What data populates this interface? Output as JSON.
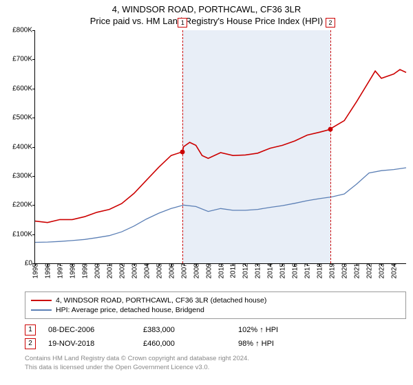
{
  "title_line1": "4, WINDSOR ROAD, PORTHCAWL, CF36 3LR",
  "title_line2": "Price paid vs. HM Land Registry's House Price Index (HPI)",
  "chart": {
    "type": "line",
    "x_years": [
      1995,
      1996,
      1997,
      1998,
      1999,
      2000,
      2001,
      2002,
      2003,
      2004,
      2005,
      2006,
      2007,
      2008,
      2009,
      2010,
      2011,
      2012,
      2013,
      2014,
      2015,
      2016,
      2017,
      2018,
      2019,
      2020,
      2021,
      2022,
      2023,
      2024
    ],
    "x_end_year": 2025,
    "ylim": [
      0,
      800000
    ],
    "ytick_step": 100000,
    "y_prefix": "£",
    "y_suffix": "K",
    "background": "#ffffff",
    "band": {
      "from_year": 2006.93,
      "to_year": 2018.88,
      "fill": "#e8eef7"
    },
    "vlines": [
      {
        "year": 2006.93,
        "color": "#cc0000",
        "dash": "2,2",
        "marker": "1"
      },
      {
        "year": 2018.88,
        "color": "#cc0000",
        "dash": "2,2",
        "marker": "2"
      }
    ],
    "series": [
      {
        "name": "4, WINDSOR ROAD, PORTHCAWL, CF36 3LR (detached house)",
        "color": "#cc0000",
        "width": 1.6,
        "points": [
          [
            1995,
            145000
          ],
          [
            1996,
            140000
          ],
          [
            1997,
            150000
          ],
          [
            1998,
            150000
          ],
          [
            1999,
            160000
          ],
          [
            2000,
            175000
          ],
          [
            2001,
            185000
          ],
          [
            2002,
            205000
          ],
          [
            2003,
            240000
          ],
          [
            2004,
            285000
          ],
          [
            2005,
            330000
          ],
          [
            2006,
            370000
          ],
          [
            2006.93,
            383000
          ],
          [
            2007,
            400000
          ],
          [
            2007.5,
            415000
          ],
          [
            2008,
            405000
          ],
          [
            2008.5,
            370000
          ],
          [
            2009,
            360000
          ],
          [
            2010,
            380000
          ],
          [
            2011,
            370000
          ],
          [
            2012,
            372000
          ],
          [
            2013,
            378000
          ],
          [
            2014,
            395000
          ],
          [
            2015,
            405000
          ],
          [
            2016,
            420000
          ],
          [
            2017,
            440000
          ],
          [
            2018,
            450000
          ],
          [
            2018.88,
            460000
          ],
          [
            2019,
            465000
          ],
          [
            2020,
            490000
          ],
          [
            2021,
            555000
          ],
          [
            2022,
            625000
          ],
          [
            2022.5,
            660000
          ],
          [
            2023,
            635000
          ],
          [
            2024,
            650000
          ],
          [
            2024.5,
            665000
          ],
          [
            2025,
            655000
          ]
        ]
      },
      {
        "name": "HPI: Average price, detached house, Bridgend",
        "color": "#5b7fb5",
        "width": 1.3,
        "points": [
          [
            1995,
            72000
          ],
          [
            1996,
            73000
          ],
          [
            1997,
            75000
          ],
          [
            1998,
            78000
          ],
          [
            1999,
            82000
          ],
          [
            2000,
            88000
          ],
          [
            2001,
            95000
          ],
          [
            2002,
            108000
          ],
          [
            2003,
            128000
          ],
          [
            2004,
            152000
          ],
          [
            2005,
            172000
          ],
          [
            2006,
            188000
          ],
          [
            2007,
            200000
          ],
          [
            2008,
            195000
          ],
          [
            2009,
            178000
          ],
          [
            2010,
            188000
          ],
          [
            2011,
            182000
          ],
          [
            2012,
            182000
          ],
          [
            2013,
            185000
          ],
          [
            2014,
            192000
          ],
          [
            2015,
            198000
          ],
          [
            2016,
            206000
          ],
          [
            2017,
            215000
          ],
          [
            2018,
            222000
          ],
          [
            2019,
            228000
          ],
          [
            2020,
            238000
          ],
          [
            2021,
            272000
          ],
          [
            2022,
            310000
          ],
          [
            2023,
            318000
          ],
          [
            2024,
            322000
          ],
          [
            2025,
            328000
          ]
        ]
      }
    ],
    "sale_dots": [
      {
        "year": 2006.93,
        "value": 383000,
        "color": "#cc0000"
      },
      {
        "year": 2018.88,
        "value": 460000,
        "color": "#cc0000"
      }
    ]
  },
  "legend": {
    "rows": [
      {
        "color": "#cc0000",
        "label": "4, WINDSOR ROAD, PORTHCAWL, CF36 3LR (detached house)"
      },
      {
        "color": "#5b7fb5",
        "label": "HPI: Average price, detached house, Bridgend"
      }
    ]
  },
  "sales": [
    {
      "n": "1",
      "date": "08-DEC-2006",
      "price": "£383,000",
      "pct": "102%",
      "arrow": "↑",
      "suffix": "HPI"
    },
    {
      "n": "2",
      "date": "19-NOV-2018",
      "price": "£460,000",
      "pct": "98%",
      "arrow": "↑",
      "suffix": "HPI"
    }
  ],
  "footer": {
    "line1": "Contains HM Land Registry data © Crown copyright and database right 2024.",
    "line2": "This data is licensed under the Open Government Licence v3.0."
  }
}
